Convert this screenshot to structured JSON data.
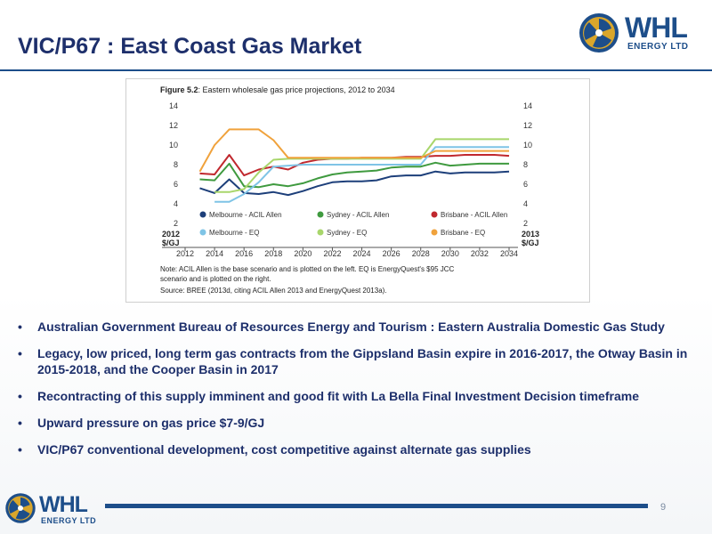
{
  "slide": {
    "title": "VIC/P67 : East Coast Gas Market",
    "page_number": "9",
    "logo": {
      "name": "WHL",
      "sub": "ENERGY LTD"
    }
  },
  "bullets": [
    "Australian Government Bureau of Resources Energy and Tourism : Eastern Australia Domestic Gas Study",
    "Legacy, low priced, long term gas contracts from the Gippsland Basin expire in 2016-2017, the Otway Basin in 2015-2018, and the Cooper Basin in 2017",
    "Recontracting of this supply imminent and good fit with La Bella Final Investment Decision timeframe",
    "Upward pressure on gas price $7-9/GJ",
    "VIC/P67 conventional development, cost competitive against alternate gas supplies"
  ],
  "figure": {
    "label": "Figure 5.2",
    "caption": ": Eastern wholesale gas price projections, 2012 to 2034",
    "note": "Note: ACIL Allen is the base scenario and is plotted on the left. EQ is EnergyQuest's $95 JCC scenario and is plotted on the right.",
    "source": "Source: BREE (2013d, citing ACIL Allen 2013 and EnergyQuest 2013a).",
    "left_unit": "2012\n$/GJ",
    "right_unit": "2013\n$/GJ"
  },
  "chart_data": {
    "type": "line",
    "title": "Eastern wholesale gas price projections, 2012 to 2034",
    "x": [
      2012,
      2013,
      2014,
      2015,
      2016,
      2017,
      2018,
      2019,
      2020,
      2021,
      2022,
      2023,
      2024,
      2025,
      2026,
      2027,
      2028,
      2029,
      2030,
      2031,
      2032,
      2033,
      2034
    ],
    "x_ticks": [
      2012,
      2014,
      2016,
      2018,
      2020,
      2022,
      2024,
      2026,
      2028,
      2030,
      2032,
      2034
    ],
    "y_ticks": [
      2,
      4,
      6,
      8,
      10,
      12,
      14
    ],
    "ylim": [
      2,
      14
    ],
    "grid": false,
    "legend_position": "bottom",
    "colors": {
      "melbourne_acil": "#1d3f7a",
      "sydney_acil": "#3f9a3f",
      "brisbane_acil": "#c0282e",
      "melbourne_eq": "#7fc4e6",
      "sydney_eq": "#a8d66b",
      "brisbane_eq": "#f0a23c"
    },
    "series": [
      {
        "name": "Melbourne - ACIL Allen",
        "color_key": "melbourne_acil",
        "values": [
          null,
          5.6,
          5.1,
          6.5,
          5.1,
          5.0,
          5.2,
          4.9,
          5.3,
          5.8,
          6.2,
          6.3,
          6.3,
          6.4,
          6.8,
          6.9,
          6.9,
          7.3,
          7.1,
          7.2,
          7.2,
          7.2,
          7.3
        ]
      },
      {
        "name": "Sydney - ACIL Allen",
        "color_key": "sydney_acil",
        "values": [
          null,
          6.5,
          6.4,
          8.1,
          5.8,
          5.7,
          6.0,
          5.8,
          6.1,
          6.6,
          7.0,
          7.2,
          7.3,
          7.4,
          7.7,
          7.8,
          7.8,
          8.2,
          7.9,
          8.0,
          8.1,
          8.1,
          8.1
        ]
      },
      {
        "name": "Brisbane - ACIL Allen",
        "color_key": "brisbane_acil",
        "values": [
          null,
          7.1,
          7.0,
          9.0,
          6.9,
          7.5,
          7.8,
          7.5,
          8.2,
          8.5,
          8.6,
          8.6,
          8.7,
          8.7,
          8.7,
          8.8,
          8.8,
          8.9,
          8.9,
          9.0,
          9.0,
          9.0,
          8.9
        ]
      },
      {
        "name": "Melbourne - EQ",
        "color_key": "melbourne_eq",
        "values": [
          null,
          null,
          4.2,
          4.2,
          5.0,
          6.2,
          7.8,
          7.9,
          8.0,
          8.0,
          8.0,
          8.0,
          8.0,
          8.0,
          8.0,
          8.0,
          8.0,
          9.8,
          9.8,
          9.8,
          9.8,
          9.8,
          9.8
        ]
      },
      {
        "name": "Sydney - EQ",
        "color_key": "sydney_eq",
        "values": [
          null,
          null,
          5.2,
          5.2,
          5.5,
          7.2,
          8.5,
          8.6,
          8.6,
          8.6,
          8.6,
          8.6,
          8.6,
          8.6,
          8.6,
          8.6,
          8.6,
          10.6,
          10.6,
          10.6,
          10.6,
          10.6,
          10.6
        ]
      },
      {
        "name": "Brisbane - EQ",
        "color_key": "brisbane_eq",
        "values": [
          null,
          7.3,
          10.0,
          11.6,
          11.6,
          11.6,
          10.5,
          8.7,
          8.7,
          8.7,
          8.7,
          8.7,
          8.7,
          8.7,
          8.7,
          8.7,
          8.7,
          9.4,
          9.4,
          9.4,
          9.4,
          9.4,
          9.4
        ]
      }
    ]
  }
}
